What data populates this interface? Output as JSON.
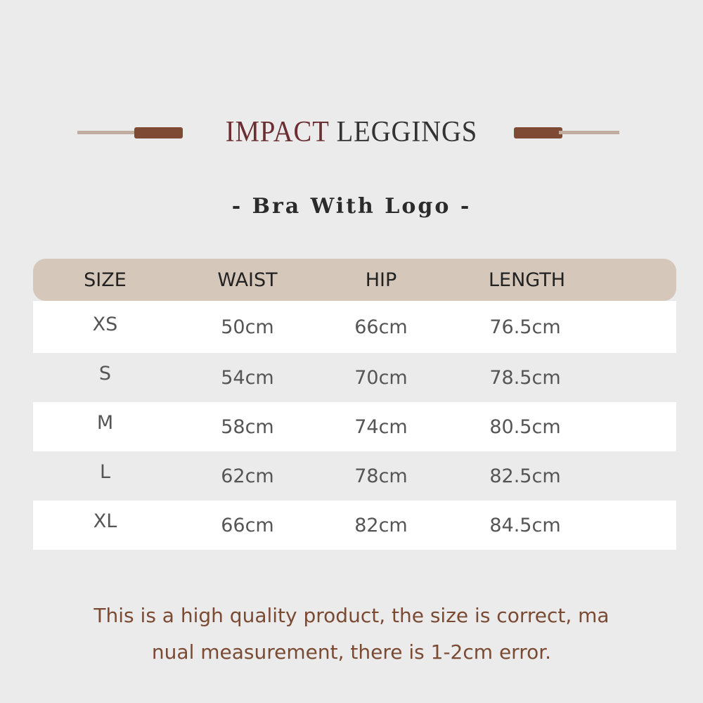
{
  "title": {
    "accent": "IMPACT",
    "main": "LEGGINGS"
  },
  "subtitle": "- Bra With Logo -",
  "colors": {
    "background": "#ebebeb",
    "header_bg": "#d6c7bb",
    "accent_title": "#6b2e33",
    "bar": "#7e4a34",
    "line": "#c2aca0",
    "note": "#7a4a33"
  },
  "table": {
    "headers": [
      "SIZE",
      "WAIST",
      "HIP",
      "LENGTH"
    ],
    "rows": [
      [
        "XS",
        "50cm",
        "66cm",
        "76.5cm"
      ],
      [
        "S",
        "54cm",
        "70cm",
        "78.5cm"
      ],
      [
        "M",
        "58cm",
        "74cm",
        "80.5cm"
      ],
      [
        "L",
        "62cm",
        "78cm",
        "82.5cm"
      ],
      [
        "XL",
        "66cm",
        "82cm",
        "84.5cm"
      ]
    ]
  },
  "note": {
    "line1": "This is a high quality product, the size is correct, ma",
    "line2": "nual measurement, there is 1-2cm error."
  }
}
